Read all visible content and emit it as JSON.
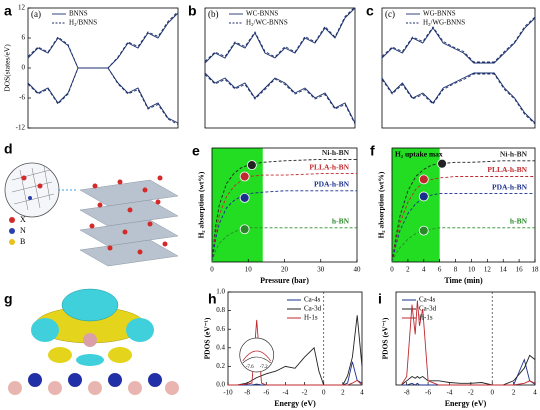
{
  "chart_data": [
    {
      "type": "dos",
      "panel": "a",
      "tag": "(a)",
      "y_label": "DOS(states/eV)",
      "ylim": [
        -12,
        12
      ],
      "yticks": [
        12,
        6,
        0,
        -6,
        -12
      ],
      "legend": "upper left",
      "categories": [
        null,
        null,
        null,
        null,
        null,
        null,
        null,
        null,
        null,
        null,
        null,
        null,
        null,
        null,
        null,
        null
      ],
      "series": [
        {
          "name": "BNNS",
          "color": "#1b2f6b",
          "dashed": false,
          "spin_up": [
            2,
            4,
            3,
            6,
            4.5,
            0,
            0,
            0,
            0,
            2,
            5,
            4,
            7,
            6,
            9,
            11
          ],
          "spin_down": [
            -3,
            -5,
            -4,
            -7,
            -5,
            0,
            0,
            0,
            0,
            -3,
            -5,
            -4,
            -8,
            -7,
            -10,
            -11
          ]
        },
        {
          "name": "H₂/BNNS",
          "color": "#1b2f6b",
          "dashed": true,
          "spin_up": [
            2.3,
            4.2,
            3.2,
            6.2,
            4.7,
            0,
            0,
            0,
            0,
            2.2,
            5.2,
            4.3,
            7.2,
            6.3,
            9.3,
            11.3
          ],
          "spin_down": [
            -3.2,
            -5.2,
            -4.2,
            -7.2,
            -5.2,
            0,
            0,
            0,
            0,
            -3.2,
            -5.2,
            -4.3,
            -8.2,
            -7.3,
            -10.2,
            -11.3
          ]
        }
      ]
    },
    {
      "type": "dos",
      "panel": "b",
      "tag": "(b)",
      "ylim": [
        -12,
        12
      ],
      "legend": "upper left",
      "categories": [
        null,
        null,
        null,
        null,
        null,
        null,
        null,
        null,
        null,
        null,
        null,
        null,
        null,
        null,
        null,
        null
      ],
      "series": [
        {
          "name": "WC-BNNS",
          "color": "#1b2f6b",
          "dashed": false,
          "spin_up": [
            1,
            3,
            2,
            5,
            4,
            7,
            3,
            2,
            4,
            3,
            6,
            5,
            8,
            6,
            10,
            12
          ],
          "spin_down": [
            -1,
            -3,
            -2,
            -4,
            -3,
            -6,
            -4,
            -2,
            -3,
            -5,
            -4,
            -6,
            -5,
            -8,
            -7,
            -11
          ]
        },
        {
          "name": "H₂/WC-BNNS",
          "color": "#1b2f6b",
          "dashed": true,
          "spin_up": [
            1.3,
            3.2,
            2.3,
            5.2,
            4.3,
            7.2,
            3.3,
            2.2,
            4.3,
            3.2,
            6.3,
            5.2,
            8.3,
            6.2,
            10.3,
            12.2
          ],
          "spin_down": [
            -1.3,
            -3.2,
            -2.3,
            -4.2,
            -3.3,
            -6.2,
            -4.3,
            -2.2,
            -3.3,
            -5.2,
            -4.3,
            -6.2,
            -5.3,
            -8.2,
            -7.3,
            -11.2
          ]
        }
      ]
    },
    {
      "type": "dos",
      "panel": "c",
      "tag": "(c)",
      "ylim": [
        -12,
        12
      ],
      "legend": "upper left",
      "categories": [
        null,
        null,
        null,
        null,
        null,
        null,
        null,
        null,
        null,
        null,
        null,
        null,
        null,
        null,
        null,
        null
      ],
      "series": [
        {
          "name": "WG-BNNS",
          "color": "#1b2f6b",
          "dashed": false,
          "spin_up": [
            2,
            4,
            3,
            6,
            5,
            8,
            5,
            4,
            3,
            1,
            1,
            1,
            3,
            5,
            8,
            10
          ],
          "spin_down": [
            -2,
            -5,
            -3,
            -6,
            -5,
            -7,
            -4,
            -3,
            -2,
            -1,
            -1,
            -1,
            -4,
            -6,
            -9,
            -11
          ]
        },
        {
          "name": "H₂/WG-BNNS",
          "color": "#1b2f6b",
          "dashed": true,
          "spin_up": [
            2.3,
            4.2,
            3.3,
            6.2,
            5.3,
            8.2,
            5.3,
            4.2,
            3.3,
            1.2,
            1.2,
            1.2,
            3.3,
            5.2,
            8.3,
            10.2
          ],
          "spin_down": [
            -2.3,
            -5.2,
            -3.3,
            -6.2,
            -5.3,
            -7.2,
            -4.3,
            -3.2,
            -2.3,
            -1.2,
            -1.2,
            -1.2,
            -4.3,
            -6.2,
            -9.3,
            -11.2
          ]
        }
      ]
    },
    {
      "type": "schematic",
      "panel": "d",
      "legend": [
        "X",
        "N",
        "B"
      ]
    },
    {
      "type": "line",
      "panel": "e",
      "x_label": "Pressure (bar)",
      "y_label": "H₂ absorption (wt%)",
      "xlim": [
        0,
        40
      ],
      "xticks": [
        0,
        10,
        20,
        30,
        40
      ],
      "ylim": [
        0,
        8
      ],
      "highlight_x": [
        0,
        14
      ],
      "highlight_color": "#22dd22",
      "legend": "inline",
      "x": [
        0,
        1,
        2,
        4,
        6,
        8,
        10,
        14,
        20,
        30,
        40
      ],
      "series": [
        {
          "name": "Ni-h-BN",
          "color": "#222222",
          "dashed": true,
          "values": [
            0,
            2.5,
            4,
            5.5,
            6.2,
            6.6,
            6.8,
            7,
            7.1,
            7.2,
            7.2
          ],
          "marker": [
            11,
            6.8
          ]
        },
        {
          "name": "PLLA-h-BN",
          "color": "#c0282d",
          "dashed": true,
          "values": [
            0,
            2,
            3.3,
            4.6,
            5.3,
            5.7,
            6,
            6.1,
            6.1,
            6.2,
            6.2
          ],
          "marker": [
            9,
            6
          ]
        },
        {
          "name": "PDA-h-BN",
          "color": "#1a2f8c",
          "dashed": true,
          "values": [
            0,
            1.6,
            2.7,
            3.8,
            4.3,
            4.6,
            4.8,
            4.9,
            5,
            5,
            5
          ],
          "marker": [
            9,
            4.5
          ]
        },
        {
          "name": "h-BN",
          "color": "#2a8a2a",
          "dashed": true,
          "values": [
            0,
            0.8,
            1.3,
            1.8,
            2.1,
            2.3,
            2.4,
            2.4,
            2.4,
            2.4,
            2.4
          ],
          "marker": [
            9,
            2.3
          ]
        }
      ]
    },
    {
      "type": "line",
      "panel": "f",
      "x_label": "Time (min)",
      "y_label": "H₂ absorption (wt%)",
      "annotation": "H₂ uptake max",
      "xlim": [
        0,
        18
      ],
      "xticks": [
        0,
        2,
        4,
        6,
        8,
        10,
        12,
        14,
        16,
        18
      ],
      "ylim": [
        0,
        8
      ],
      "highlight_x": [
        0,
        6
      ],
      "highlight_color": "#22dd22",
      "legend": "inline",
      "x": [
        0,
        0.5,
        1,
        2,
        3,
        4,
        5,
        6,
        8,
        10,
        14,
        18
      ],
      "series": [
        {
          "name": "Ni-h-BN",
          "color": "#222222",
          "dashed": true,
          "values": [
            0,
            1.8,
            3.2,
            5,
            6,
            6.5,
            6.8,
            6.9,
            7,
            7,
            7.1,
            7.1
          ],
          "marker": [
            6.3,
            6.9
          ]
        },
        {
          "name": "PLLA-h-BN",
          "color": "#c0282d",
          "dashed": true,
          "values": [
            0,
            1.5,
            2.7,
            4.2,
            5.1,
            5.6,
            5.8,
            5.9,
            6,
            6,
            6,
            6
          ],
          "marker": [
            4,
            5.8
          ]
        },
        {
          "name": "PDA-h-BN",
          "color": "#1a2f8c",
          "dashed": true,
          "values": [
            0,
            1.2,
            2.2,
            3.4,
            4.1,
            4.5,
            4.7,
            4.8,
            4.8,
            4.8,
            4.8,
            4.8
          ],
          "marker": [
            4,
            4.6
          ]
        },
        {
          "name": "h-BN",
          "color": "#2a8a2a",
          "dashed": true,
          "values": [
            0,
            0.6,
            1,
            1.6,
            2,
            2.2,
            2.3,
            2.4,
            2.4,
            2.4,
            2.4,
            2.4
          ],
          "marker": [
            4,
            2.2
          ]
        }
      ]
    },
    {
      "type": "isosurface",
      "panel": "g"
    },
    {
      "type": "line",
      "panel": "h",
      "x_label": "Energy (eV)",
      "y_label": "PDOS (eV⁻¹)",
      "xlim": [
        -10,
        4
      ],
      "xticks": [
        -10,
        -8,
        -6,
        -4,
        -2,
        0,
        2,
        4
      ],
      "ylim": [
        0,
        1
      ],
      "yticks": [
        {
          "value": 0,
          "label": "0.0"
        },
        {
          "value": 0.2,
          "label": "0.2"
        },
        {
          "value": 0.4,
          "label": "0.4"
        },
        {
          "value": 0.6,
          "label": "0.6"
        },
        {
          "value": 0.8,
          "label": "0.8"
        },
        {
          "value": 1,
          "label": "1.0"
        }
      ],
      "fermi_level": 0,
      "legend": "upper center",
      "inset": {
        "xticks": [
          -7.6,
          -7.2
        ]
      },
      "x": [
        -10,
        -9,
        -8,
        -7.5,
        -7,
        -6.5,
        -6,
        -5,
        -4,
        -3,
        -2,
        -1,
        -0.5,
        0,
        1,
        2,
        2.5,
        3,
        3.5,
        4
      ],
      "series": [
        {
          "name": "Ca-4s",
          "color": "#1a2f8c",
          "dashed": false,
          "values": [
            0,
            0,
            0,
            0,
            0.01,
            0,
            0,
            0,
            0,
            0,
            0,
            0,
            0,
            0,
            0,
            0,
            0.02,
            0.25,
            0.05,
            0.02
          ]
        },
        {
          "name": "Ca-3d",
          "color": "#222222",
          "dashed": false,
          "values": [
            0,
            0,
            0.02,
            0.05,
            0.08,
            0.1,
            0.12,
            0.15,
            0.2,
            0.18,
            0.3,
            0.4,
            0.15,
            0,
            0,
            0,
            0.1,
            0.3,
            0.75,
            0.2
          ]
        },
        {
          "name": "H-1s",
          "color": "#c0282d",
          "dashed": false,
          "values": [
            0,
            0,
            0.01,
            0.02,
            0.7,
            0.02,
            0,
            0,
            0,
            0,
            0,
            0,
            0,
            0,
            0,
            0,
            0,
            0.02,
            0.05,
            0
          ]
        }
      ]
    },
    {
      "type": "line",
      "panel": "i",
      "x_label": "Energy (eV)",
      "y_label": "PDOS (eV⁻¹)",
      "xlim": [
        -9,
        4
      ],
      "xticks": [
        -8,
        -6,
        -4,
        -2,
        0,
        2,
        4
      ],
      "ylim": [
        0,
        1.1
      ],
      "fermi_level": 0,
      "legend": "upper left",
      "x": [
        -8.5,
        -8,
        -7.5,
        -7.2,
        -7,
        -6.8,
        -6.5,
        -6,
        -5,
        -4,
        -3,
        -2,
        -1,
        0,
        1,
        2,
        3,
        3.5,
        4
      ],
      "series": [
        {
          "name": "Ca-4s",
          "color": "#1a2f8c",
          "dashed": false,
          "values": [
            0,
            0,
            0.02,
            0,
            0.02,
            0,
            0,
            0,
            0,
            0,
            0,
            0,
            0,
            0,
            0,
            0,
            0.3,
            0.05,
            0.01
          ]
        },
        {
          "name": "Ca-3d",
          "color": "#222222",
          "dashed": false,
          "values": [
            0,
            0.05,
            0.1,
            0.08,
            0.1,
            0.08,
            0.1,
            0.05,
            0.05,
            0.03,
            0.02,
            0.02,
            0.03,
            0,
            0,
            0.05,
            0.2,
            0.35,
            0.3
          ]
        },
        {
          "name": "H-1s",
          "color": "#c0282d",
          "dashed": false,
          "values": [
            0,
            0.1,
            0.95,
            0.6,
            1,
            0.7,
            0.9,
            0.05,
            0,
            0,
            0,
            0,
            0,
            0,
            0,
            0,
            0.02,
            0.05,
            0.02
          ]
        }
      ]
    }
  ]
}
